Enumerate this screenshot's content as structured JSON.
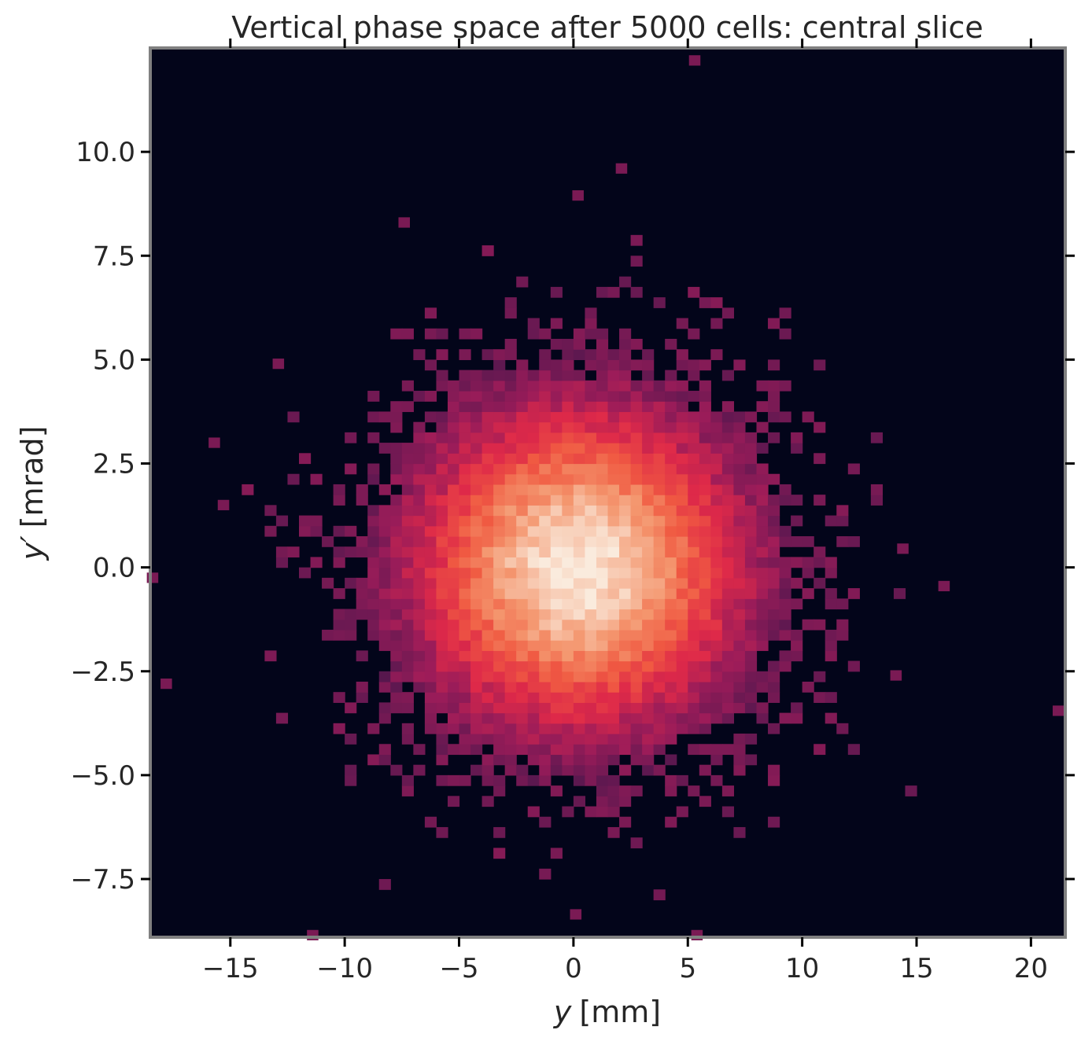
{
  "chart_data": {
    "type": "heatmap",
    "title": "Vertical phase space after 5000 cells: central slice",
    "xlabel_var": "y",
    "xlabel_unit": "[mm]",
    "ylabel_var": "y′",
    "ylabel_unit": "[mrad]",
    "xlim": [
      -18.5,
      21.5
    ],
    "ylim": [
      -8.9,
      12.5
    ],
    "xticks": [
      -15,
      -10,
      -5,
      0,
      5,
      10,
      15,
      20
    ],
    "xtick_labels": [
      "−15",
      "−10",
      "−5",
      "0",
      "5",
      "10",
      "15",
      "20"
    ],
    "yticks": [
      -7.5,
      -5.0,
      -2.5,
      0.0,
      2.5,
      5.0,
      7.5,
      10.0
    ],
    "ytick_labels": [
      "−7.5",
      "−5.0",
      "−2.5",
      "0.0",
      "2.5",
      "5.0",
      "7.5",
      "10.0"
    ],
    "distribution": {
      "kind": "2d-gaussian-histogram",
      "center_x": 0.2,
      "center_y": 0.0,
      "sigma_x": 4.4,
      "sigma_y": 2.35,
      "bin_width_x": 0.5,
      "bin_width_y": 0.25,
      "colormap": "rocket"
    },
    "outliers": [
      {
        "x": -18.4,
        "y": -0.25
      },
      {
        "x": -17.8,
        "y": -2.8
      },
      {
        "x": -15.7,
        "y": 3.0
      },
      {
        "x": -15.3,
        "y": 1.5
      },
      {
        "x": -12.9,
        "y": 4.9
      },
      {
        "x": 21.2,
        "y": -3.45
      },
      {
        "x": 16.2,
        "y": -0.45
      },
      {
        "x": 14.4,
        "y": 0.45
      },
      {
        "x": 14.1,
        "y": -2.6
      },
      {
        "x": 5.3,
        "y": 12.2
      },
      {
        "x": 2.1,
        "y": 9.6
      },
      {
        "x": 0.2,
        "y": 8.95
      },
      {
        "x": -7.4,
        "y": 8.3
      },
      {
        "x": -11.4,
        "y": -8.85
      },
      {
        "x": 5.4,
        "y": -8.85
      },
      {
        "x": 0.1,
        "y": -8.35
      }
    ],
    "colors": {
      "background": "#03051a",
      "frame": "#808080",
      "text": "#262626"
    }
  }
}
